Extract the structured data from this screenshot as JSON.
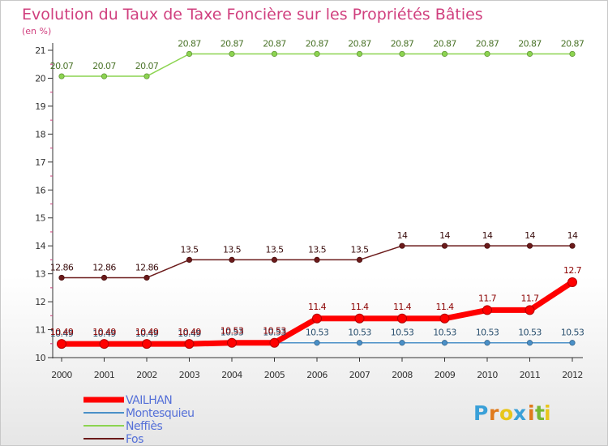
{
  "chart_data": {
    "type": "line",
    "title": "Evolution du Taux de Taxe Foncière sur les Propriétés Bâties",
    "ylabel": "(en %)",
    "xlabel": "",
    "x": [
      "2000",
      "2001",
      "2002",
      "2003",
      "2004",
      "2005",
      "2006",
      "2007",
      "2008",
      "2009",
      "2010",
      "2011",
      "2012"
    ],
    "ylim": [
      10,
      21
    ],
    "yticks": [
      "10",
      "11",
      "12",
      "13",
      "14",
      "15",
      "16",
      "17",
      "18",
      "19",
      "20",
      "21"
    ],
    "grid": false,
    "legend_position": "bottom-left",
    "series": [
      {
        "name": "VAILHAN",
        "color": "#ff0000",
        "values": [
          10.49,
          10.49,
          10.49,
          10.49,
          10.53,
          10.53,
          11.4,
          11.4,
          11.4,
          11.4,
          11.7,
          11.7,
          12.7
        ],
        "labels": [
          "10.49",
          "10.49",
          "10.49",
          "10.49",
          "10.53",
          "10.53",
          "11.4",
          "11.4",
          "11.4",
          "11.4",
          "11.7",
          "11.7",
          "12.7"
        ]
      },
      {
        "name": "Montesquieu",
        "color": "#4a90c8",
        "values": [
          10.49,
          10.49,
          10.49,
          10.49,
          10.53,
          10.53,
          10.53,
          10.53,
          10.53,
          10.53,
          10.53,
          10.53,
          10.53
        ],
        "labels": [
          "10.49",
          "10.49",
          "10.49",
          "10.49",
          "10.53",
          "10.53",
          "10.53",
          "10.53",
          "10.53",
          "10.53",
          "10.53",
          "10.53",
          "10.53"
        ]
      },
      {
        "name": "Neffiès",
        "color": "#8cd450",
        "values": [
          20.07,
          20.07,
          20.07,
          20.87,
          20.87,
          20.87,
          20.87,
          20.87,
          20.87,
          20.87,
          20.87,
          20.87,
          20.87
        ],
        "labels": [
          "20.07",
          "20.07",
          "20.07",
          "20.87",
          "20.87",
          "20.87",
          "20.87",
          "20.87",
          "20.87",
          "20.87",
          "20.87",
          "20.87",
          "20.87"
        ]
      },
      {
        "name": "Fos",
        "color": "#6b1a1a",
        "values": [
          12.86,
          12.86,
          12.86,
          13.5,
          13.5,
          13.5,
          13.5,
          13.5,
          14,
          14,
          14,
          14,
          14
        ],
        "labels": [
          "12.86",
          "12.86",
          "12.86",
          "13.5",
          "13.5",
          "13.5",
          "13.5",
          "13.5",
          "14",
          "14",
          "14",
          "14",
          "14"
        ]
      }
    ]
  },
  "logo": {
    "text": "Proxiti",
    "colors": [
      "#3aa0d8",
      "#e07a1c",
      "#e8c61c",
      "#3aa0d8",
      "#e07a1c",
      "#78b832",
      "#e8c61c"
    ]
  }
}
